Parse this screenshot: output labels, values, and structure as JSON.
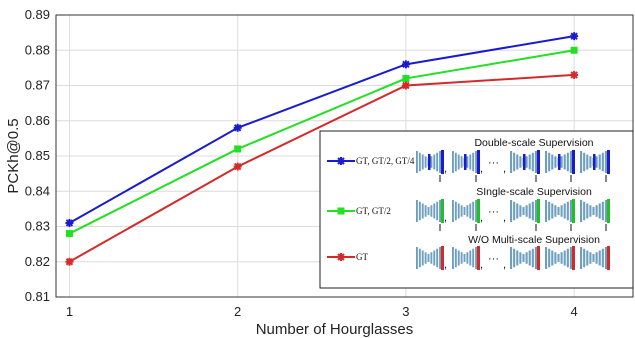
{
  "chart_data": {
    "type": "line",
    "x": [
      1,
      2,
      3,
      4
    ],
    "xlabel": "Number of Hourglasses",
    "ylabel": "PCKh@0.5",
    "xlim": [
      0.92,
      4.35
    ],
    "ylim": [
      0.81,
      0.89
    ],
    "yticks": [
      "0.81",
      "0.82",
      "0.83",
      "0.84",
      "0.85",
      "0.86",
      "0.87",
      "0.88",
      "0.89"
    ],
    "xticks": [
      "1",
      "2",
      "3",
      "4"
    ],
    "grid": true,
    "legend_position": "bottom-right",
    "series": [
      {
        "name": "GT, GT/2, GT/4",
        "color": "#1a1ad0",
        "marker": "asterisk",
        "values": [
          0.831,
          0.858,
          0.876,
          0.884
        ]
      },
      {
        "name": "GT, GT/2",
        "color": "#22e022",
        "marker": "square",
        "values": [
          0.828,
          0.852,
          0.872,
          0.88
        ]
      },
      {
        "name": "GT",
        "color": "#d42a2a",
        "marker": "asterisk",
        "values": [
          0.82,
          0.847,
          0.87,
          0.873
        ]
      }
    ],
    "legend_panels": [
      {
        "title": "Double-scale Supervision",
        "accent": "#1a1ad0",
        "separator": ",",
        "ellipsis": "···"
      },
      {
        "title": "SIngle-scale Supervision",
        "accent": "#22c022",
        "separator": ",",
        "ellipsis": "···"
      },
      {
        "title": "W/O  Multi-scale Supervision",
        "accent": "#d42a2a",
        "separator": ",",
        "ellipsis": "···"
      }
    ]
  }
}
